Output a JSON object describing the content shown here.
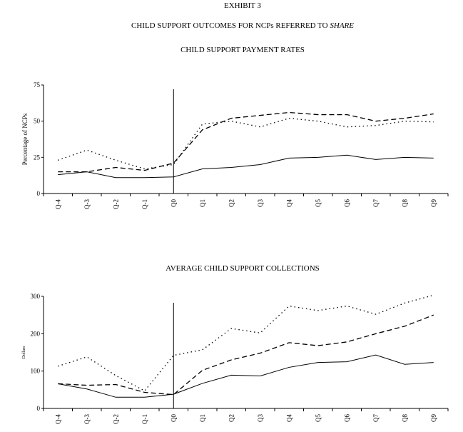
{
  "header": {
    "exhibit": "EXHIBIT 3",
    "title_prefix": "CHILD SUPPORT OUTCOMES FOR NCPs REFERRED TO ",
    "title_italic": "SHARE"
  },
  "chart_data": [
    {
      "type": "line",
      "title": "CHILD SUPPORT PAYMENT RATES",
      "xlabel": "",
      "ylabel": "Percentage of NCPs",
      "ylim": [
        0,
        75
      ],
      "yticks": [
        0,
        25,
        50,
        75
      ],
      "categories": [
        "Q-4",
        "Q-3",
        "Q-2",
        "Q-1",
        "Q0",
        "Q1",
        "Q2",
        "Q3",
        "Q4",
        "Q5",
        "Q6",
        "Q7",
        "Q8",
        "Q9"
      ],
      "reference_line_at": "Q0",
      "grid": false,
      "series": [
        {
          "style": "solid",
          "values": [
            13,
            15,
            11,
            11,
            11.5,
            17,
            18,
            20,
            24.5,
            25,
            26.5,
            23.5,
            25,
            24.5
          ]
        },
        {
          "style": "dashed",
          "values": [
            15,
            15,
            18,
            16,
            21,
            44,
            52,
            54,
            56,
            54.5,
            54.5,
            50,
            52,
            55
          ]
        },
        {
          "style": "dotted",
          "values": [
            23,
            30,
            23,
            17,
            20,
            48,
            50,
            46,
            52,
            50,
            46,
            47,
            50,
            49.5
          ]
        }
      ]
    },
    {
      "type": "line",
      "title": "AVERAGE CHILD SUPPORT COLLECTIONS",
      "xlabel": "",
      "ylabel": "Dollars",
      "ylim": [
        0,
        300
      ],
      "yticks": [
        0,
        100,
        200,
        300
      ],
      "categories": [
        "Q-4",
        "Q-3",
        "Q-2",
        "Q-1",
        "Q0",
        "Q1",
        "Q2",
        "Q3",
        "Q4",
        "Q5",
        "Q6",
        "Q7",
        "Q8",
        "Q9"
      ],
      "reference_line_at": "Q0",
      "grid": false,
      "series": [
        {
          "style": "solid",
          "values": [
            66,
            52,
            30,
            30,
            38,
            67,
            89,
            87,
            110,
            123,
            125,
            143,
            118,
            123
          ]
        },
        {
          "style": "dashed",
          "values": [
            66,
            62,
            64,
            43,
            37,
            102,
            130,
            148,
            176,
            168,
            178,
            200,
            220,
            250
          ]
        },
        {
          "style": "dotted",
          "values": [
            113,
            138,
            88,
            47,
            142,
            157,
            214,
            202,
            274,
            262,
            274,
            252,
            282,
            303
          ]
        }
      ]
    }
  ]
}
